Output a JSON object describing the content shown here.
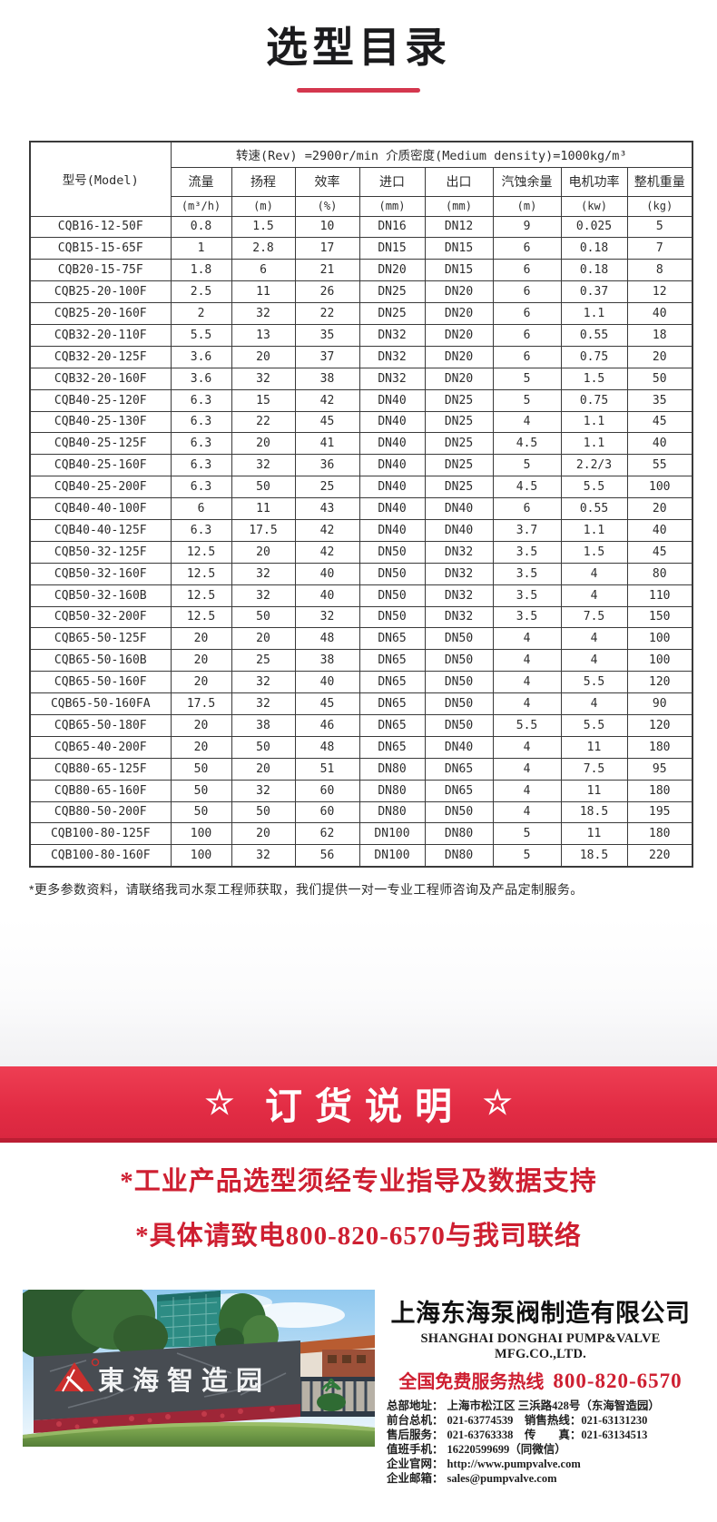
{
  "page": {
    "title": "选型目录"
  },
  "table": {
    "model_header": "型号(Model)",
    "span_header": "转速(Rev) =2900r/min  介质密度(Medium density)=1000kg/m³",
    "columns": [
      {
        "label": "流量",
        "unit": "(m³/h)"
      },
      {
        "label": "扬程",
        "unit": "(m)"
      },
      {
        "label": "效率",
        "unit": "(%)"
      },
      {
        "label": "进口",
        "unit": "(mm)"
      },
      {
        "label": "出口",
        "unit": "(mm)"
      },
      {
        "label": "汽蚀余量",
        "unit": "(m)"
      },
      {
        "label": "电机功率",
        "unit": "(kw)"
      },
      {
        "label": "整机重量",
        "unit": "(kg)"
      }
    ],
    "rows": [
      [
        "CQB16-12-50F",
        "0.8",
        "1.5",
        "10",
        "DN16",
        "DN12",
        "9",
        "0.025",
        "5"
      ],
      [
        "CQB15-15-65F",
        "1",
        "2.8",
        "17",
        "DN15",
        "DN15",
        "6",
        "0.18",
        "7"
      ],
      [
        "CQB20-15-75F",
        "1.8",
        "6",
        "21",
        "DN20",
        "DN15",
        "6",
        "0.18",
        "8"
      ],
      [
        "CQB25-20-100F",
        "2.5",
        "11",
        "26",
        "DN25",
        "DN20",
        "6",
        "0.37",
        "12"
      ],
      [
        "CQB25-20-160F",
        "2",
        "32",
        "22",
        "DN25",
        "DN20",
        "6",
        "1.1",
        "40"
      ],
      [
        "CQB32-20-110F",
        "5.5",
        "13",
        "35",
        "DN32",
        "DN20",
        "6",
        "0.55",
        "18"
      ],
      [
        "CQB32-20-125F",
        "3.6",
        "20",
        "37",
        "DN32",
        "DN20",
        "6",
        "0.75",
        "20"
      ],
      [
        "CQB32-20-160F",
        "3.6",
        "32",
        "38",
        "DN32",
        "DN20",
        "5",
        "1.5",
        "50"
      ],
      [
        "CQB40-25-120F",
        "6.3",
        "15",
        "42",
        "DN40",
        "DN25",
        "5",
        "0.75",
        "35"
      ],
      [
        "CQB40-25-130F",
        "6.3",
        "22",
        "45",
        "DN40",
        "DN25",
        "4",
        "1.1",
        "45"
      ],
      [
        "CQB40-25-125F",
        "6.3",
        "20",
        "41",
        "DN40",
        "DN25",
        "4.5",
        "1.1",
        "40"
      ],
      [
        "CQB40-25-160F",
        "6.3",
        "32",
        "36",
        "DN40",
        "DN25",
        "5",
        "2.2/3",
        "55"
      ],
      [
        "CQB40-25-200F",
        "6.3",
        "50",
        "25",
        "DN40",
        "DN25",
        "4.5",
        "5.5",
        "100"
      ],
      [
        "CQB40-40-100F",
        "6",
        "11",
        "43",
        "DN40",
        "DN40",
        "6",
        "0.55",
        "20"
      ],
      [
        "CQB40-40-125F",
        "6.3",
        "17.5",
        "42",
        "DN40",
        "DN40",
        "3.7",
        "1.1",
        "40"
      ],
      [
        "CQB50-32-125F",
        "12.5",
        "20",
        "42",
        "DN50",
        "DN32",
        "3.5",
        "1.5",
        "45"
      ],
      [
        "CQB50-32-160F",
        "12.5",
        "32",
        "40",
        "DN50",
        "DN32",
        "3.5",
        "4",
        "80"
      ],
      [
        "CQB50-32-160B",
        "12.5",
        "32",
        "40",
        "DN50",
        "DN32",
        "3.5",
        "4",
        "110"
      ],
      [
        "CQB50-32-200F",
        "12.5",
        "50",
        "32",
        "DN50",
        "DN32",
        "3.5",
        "7.5",
        "150"
      ],
      [
        "CQB65-50-125F",
        "20",
        "20",
        "48",
        "DN65",
        "DN50",
        "4",
        "4",
        "100"
      ],
      [
        "CQB65-50-160B",
        "20",
        "25",
        "38",
        "DN65",
        "DN50",
        "4",
        "4",
        "100"
      ],
      [
        "CQB65-50-160F",
        "20",
        "32",
        "40",
        "DN65",
        "DN50",
        "4",
        "5.5",
        "120"
      ],
      [
        "CQB65-50-160FA",
        "17.5",
        "32",
        "45",
        "DN65",
        "DN50",
        "4",
        "4",
        "90"
      ],
      [
        "CQB65-50-180F",
        "20",
        "38",
        "46",
        "DN65",
        "DN50",
        "5.5",
        "5.5",
        "120"
      ],
      [
        "CQB65-40-200F",
        "20",
        "50",
        "48",
        "DN65",
        "DN40",
        "4",
        "11",
        "180"
      ],
      [
        "CQB80-65-125F",
        "50",
        "20",
        "51",
        "DN80",
        "DN65",
        "4",
        "7.5",
        "95"
      ],
      [
        "CQB80-65-160F",
        "50",
        "32",
        "60",
        "DN80",
        "DN65",
        "4",
        "11",
        "180"
      ],
      [
        "CQB80-50-200F",
        "50",
        "50",
        "60",
        "DN80",
        "DN50",
        "4",
        "18.5",
        "195"
      ],
      [
        "CQB100-80-125F",
        "100",
        "20",
        "62",
        "DN100",
        "DN80",
        "5",
        "11",
        "180"
      ],
      [
        "CQB100-80-160F",
        "100",
        "32",
        "56",
        "DN100",
        "DN80",
        "5",
        "18.5",
        "220"
      ]
    ]
  },
  "note": "*更多参数资料，请联络我司水泵工程师获取，我们提供一对一专业工程师咨询及产品定制服务。",
  "order_section": {
    "star": "☆",
    "title": "订货说明",
    "lines": [
      "*工业产品选型须经专业指导及数据支持",
      "*具体请致电800-820-6570与我司联络"
    ]
  },
  "footer": {
    "photo_sign": "東海智造园",
    "company_cn": "上海东海泵阀制造有限公司",
    "company_en": "SHANGHAI DONGHAI PUMP&VALVE MFG.CO.,LTD.",
    "hotline_label": "全国免费服务热线",
    "hotline_number": "800-820-6570",
    "details": [
      {
        "label": "总部地址：",
        "value": "上海市松江区 三浜路428号（东海智造园）"
      },
      {
        "label": "前台总机：",
        "value": "021-63774539　销售热线：021-63131230"
      },
      {
        "label": "售后服务：",
        "value": "021-63763338　传　　真：021-63134513"
      },
      {
        "label": "值班手机：",
        "value": "16220599699（同微信）"
      },
      {
        "label": "企业官网：",
        "value": "http://www.pumpvalve.com"
      },
      {
        "label": "企业邮箱：",
        "value": "sales@pumpvalve.com"
      }
    ]
  }
}
